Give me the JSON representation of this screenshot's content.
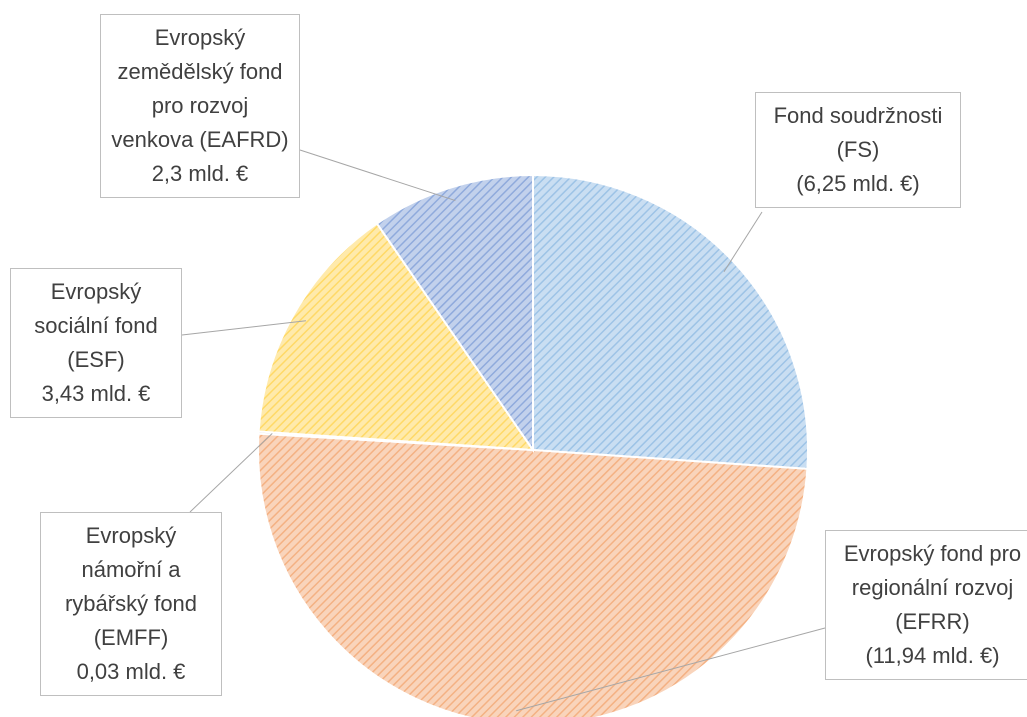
{
  "chart_data": {
    "type": "pie",
    "categories": [
      "Fond soudržnosti (FS)",
      "Evropský fond pro regionální rozvoj (EFRR)",
      "Evropský námořní a rybářský fond (EMFF)",
      "Evropský sociální fond (ESF)",
      "Evropský zemědělský fond pro rozvoj venkova (EAFRD)"
    ],
    "values": [
      6.25,
      11.94,
      0.03,
      3.43,
      2.3
    ],
    "value_labels": [
      "(6,25 mld. €)",
      "(11,94 mld. €)",
      "0,03 mld. €",
      "3,43 mld. €",
      "2,3 mld. €"
    ],
    "colors": [
      "#9dc3e6",
      "#f4b183",
      "#a5a5a5",
      "#ffd966",
      "#8faadc"
    ]
  }
}
